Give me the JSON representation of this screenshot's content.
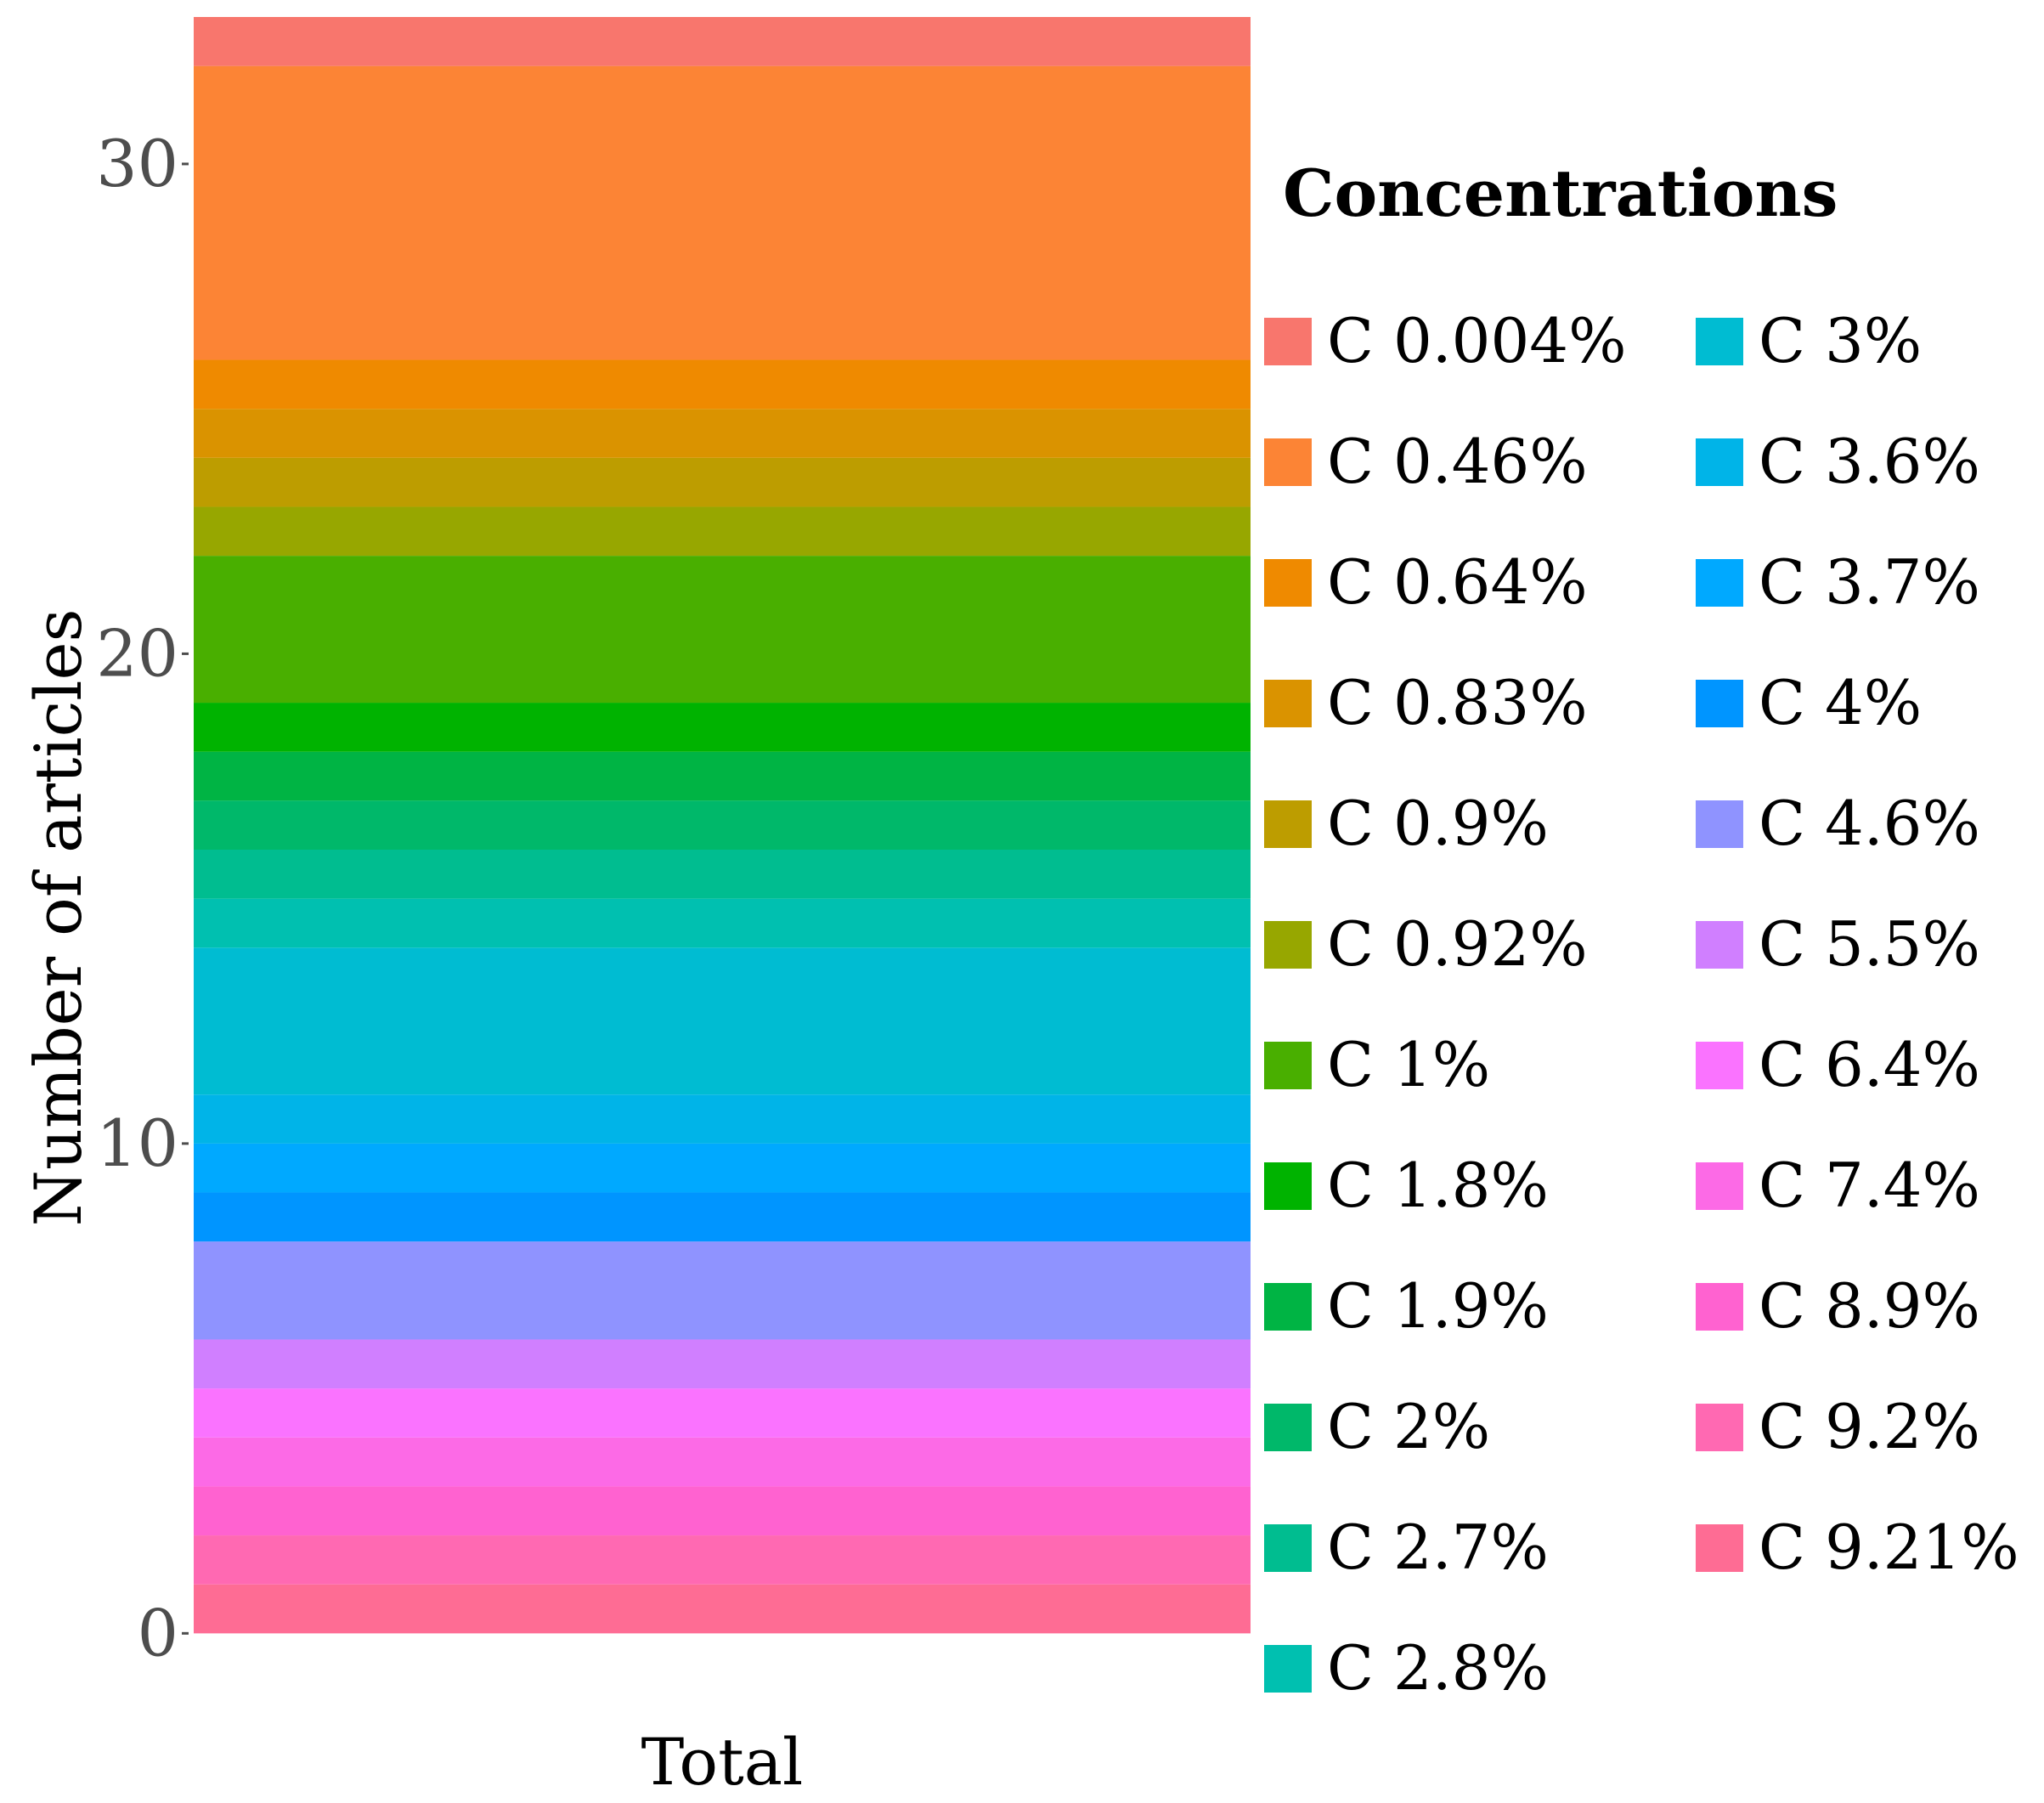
{
  "chart_data": {
    "type": "bar",
    "stacked": true,
    "categories": [
      "Total"
    ],
    "xlabel": "",
    "ylabel": "Number of articles",
    "ylim": [
      -1,
      33
    ],
    "yticks": [
      0,
      10,
      20,
      30
    ],
    "legend_title": "Concentrations",
    "legend_position": "right",
    "series": [
      {
        "name": "C 0.004%",
        "values": [
          1
        ],
        "color": "#F8766D"
      },
      {
        "name": "C 0.46%",
        "values": [
          6
        ],
        "color": "#FC8435"
      },
      {
        "name": "C 0.64%",
        "values": [
          1
        ],
        "color": "#EF8A00"
      },
      {
        "name": "C 0.83%",
        "values": [
          1
        ],
        "color": "#DA9300"
      },
      {
        "name": "C 0.9%",
        "values": [
          1
        ],
        "color": "#BD9D00"
      },
      {
        "name": "C 0.92%",
        "values": [
          1
        ],
        "color": "#97A700"
      },
      {
        "name": "C 1%",
        "values": [
          3
        ],
        "color": "#49AF00"
      },
      {
        "name": "C 1.8%",
        "values": [
          1
        ],
        "color": "#00B300"
      },
      {
        "name": "C 1.9%",
        "values": [
          1
        ],
        "color": "#00B444"
      },
      {
        "name": "C 2%",
        "values": [
          1
        ],
        "color": "#00B86A"
      },
      {
        "name": "C 2.7%",
        "values": [
          1
        ],
        "color": "#00BD90"
      },
      {
        "name": "C 2.8%",
        "values": [
          1
        ],
        "color": "#00C0B0"
      },
      {
        "name": "C 3%",
        "values": [
          3
        ],
        "color": "#00BCD2"
      },
      {
        "name": "C 3.6%",
        "values": [
          1
        ],
        "color": "#00B4E8"
      },
      {
        "name": "C 3.7%",
        "values": [
          1
        ],
        "color": "#00A9FF"
      },
      {
        "name": "C 4%",
        "values": [
          1
        ],
        "color": "#0095FF"
      },
      {
        "name": "C 4.6%",
        "values": [
          2
        ],
        "color": "#8F93FF"
      },
      {
        "name": "C 5.5%",
        "values": [
          1
        ],
        "color": "#D07FFF"
      },
      {
        "name": "C 6.4%",
        "values": [
          1
        ],
        "color": "#FA73FF"
      },
      {
        "name": "C 7.4%",
        "values": [
          1
        ],
        "color": "#FC6AE6"
      },
      {
        "name": "C 8.9%",
        "values": [
          1
        ],
        "color": "#FF62D0"
      },
      {
        "name": "C 9.2%",
        "values": [
          1
        ],
        "color": "#FF69B2"
      },
      {
        "name": "C 9.21%",
        "values": [
          1
        ],
        "color": "#FE6C94"
      }
    ]
  }
}
